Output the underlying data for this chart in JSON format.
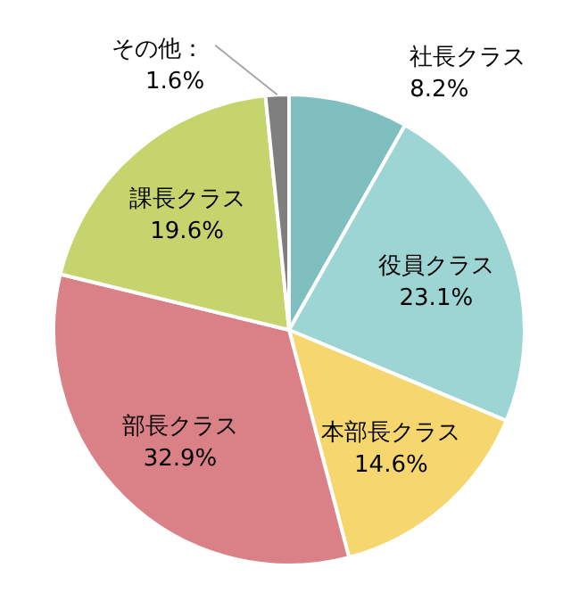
{
  "chart_data": {
    "type": "pie",
    "categories": [
      "社長クラス",
      "役員クラス",
      "本部長クラス",
      "部長クラス",
      "課長クラス",
      "その他"
    ],
    "value_labels": [
      "8.2%",
      "23.1%",
      "14.6%",
      "32.9%",
      "19.6%",
      "1.6%"
    ],
    "values": [
      8.2,
      23.1,
      14.6,
      32.9,
      19.6,
      1.6
    ],
    "colors": [
      "#7fbfbf",
      "#9dd5d5",
      "#f6d66e",
      "#d98187",
      "#c6d46e",
      "#7f7f7f"
    ],
    "annotations": [
      "："
    ]
  }
}
